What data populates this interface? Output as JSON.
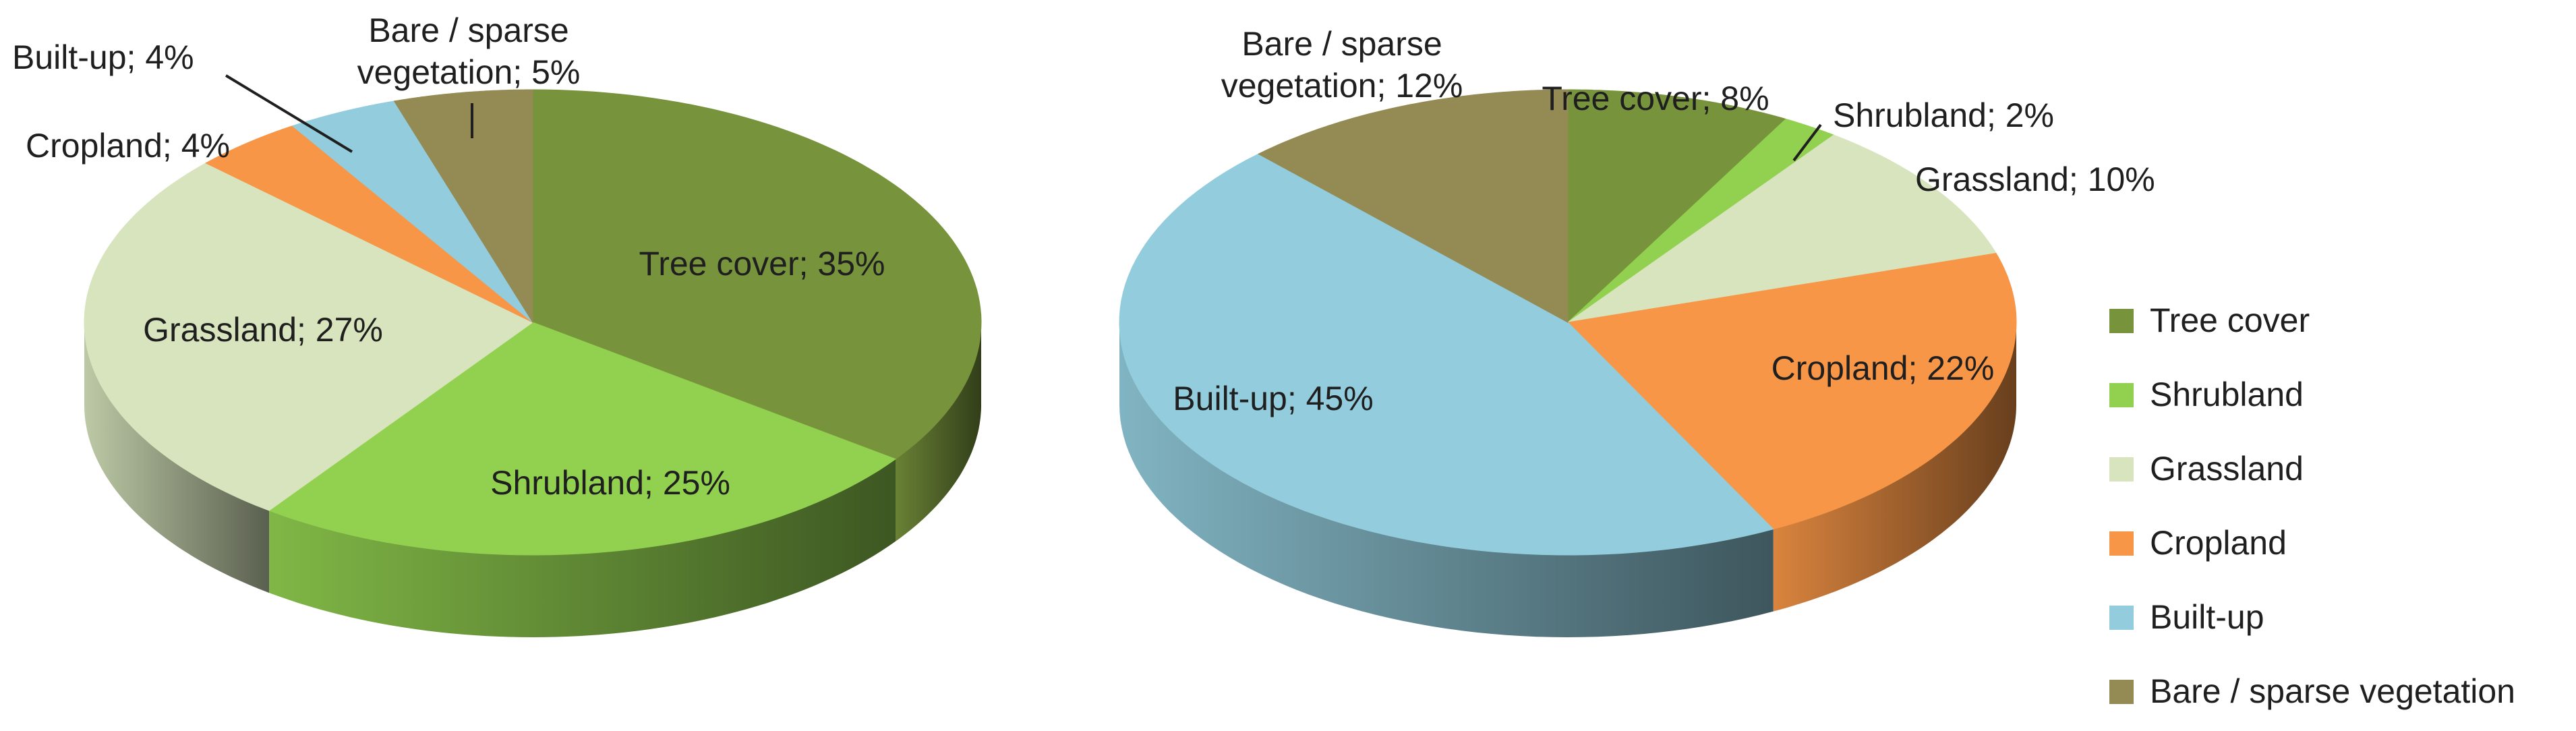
{
  "chart_data": [
    {
      "type": "pie",
      "variant": "3d",
      "categories": [
        "Tree cover",
        "Shrubland",
        "Grassland",
        "Cropland",
        "Built-up",
        "Bare / sparse vegetation"
      ],
      "values": [
        35,
        25,
        27,
        4,
        4,
        5
      ],
      "slice_labels": [
        "Tree cover; 35%",
        "Shrubland; 25%",
        "Grassland; 27%",
        "Cropland; 4%",
        "Built-up; 4%",
        "Bare / sparse\nvegetation; 5%"
      ]
    },
    {
      "type": "pie",
      "variant": "3d",
      "categories": [
        "Tree cover",
        "Shrubland",
        "Grassland",
        "Cropland",
        "Built-up",
        "Bare / sparse vegetation"
      ],
      "values": [
        8,
        2,
        10,
        22,
        45,
        12
      ],
      "slice_labels": [
        "Tree cover; 8%",
        "Shrubland; 2%",
        "Grassland; 10%",
        "Cropland; 22%",
        "Built-up; 45%",
        "Bare / sparse\nvegetation; 12%"
      ]
    }
  ],
  "legend": {
    "placement": "right",
    "items": [
      {
        "label": "Tree cover",
        "color": "#77933c"
      },
      {
        "label": "Shrubland",
        "color": "#92d050"
      },
      {
        "label": "Grassland",
        "color": "#d7e4bd"
      },
      {
        "label": "Cropland",
        "color": "#f79646"
      },
      {
        "label": "Built-up",
        "color": "#93cddd"
      },
      {
        "label": "Bare / sparse vegetation",
        "color": "#948a54"
      }
    ]
  }
}
